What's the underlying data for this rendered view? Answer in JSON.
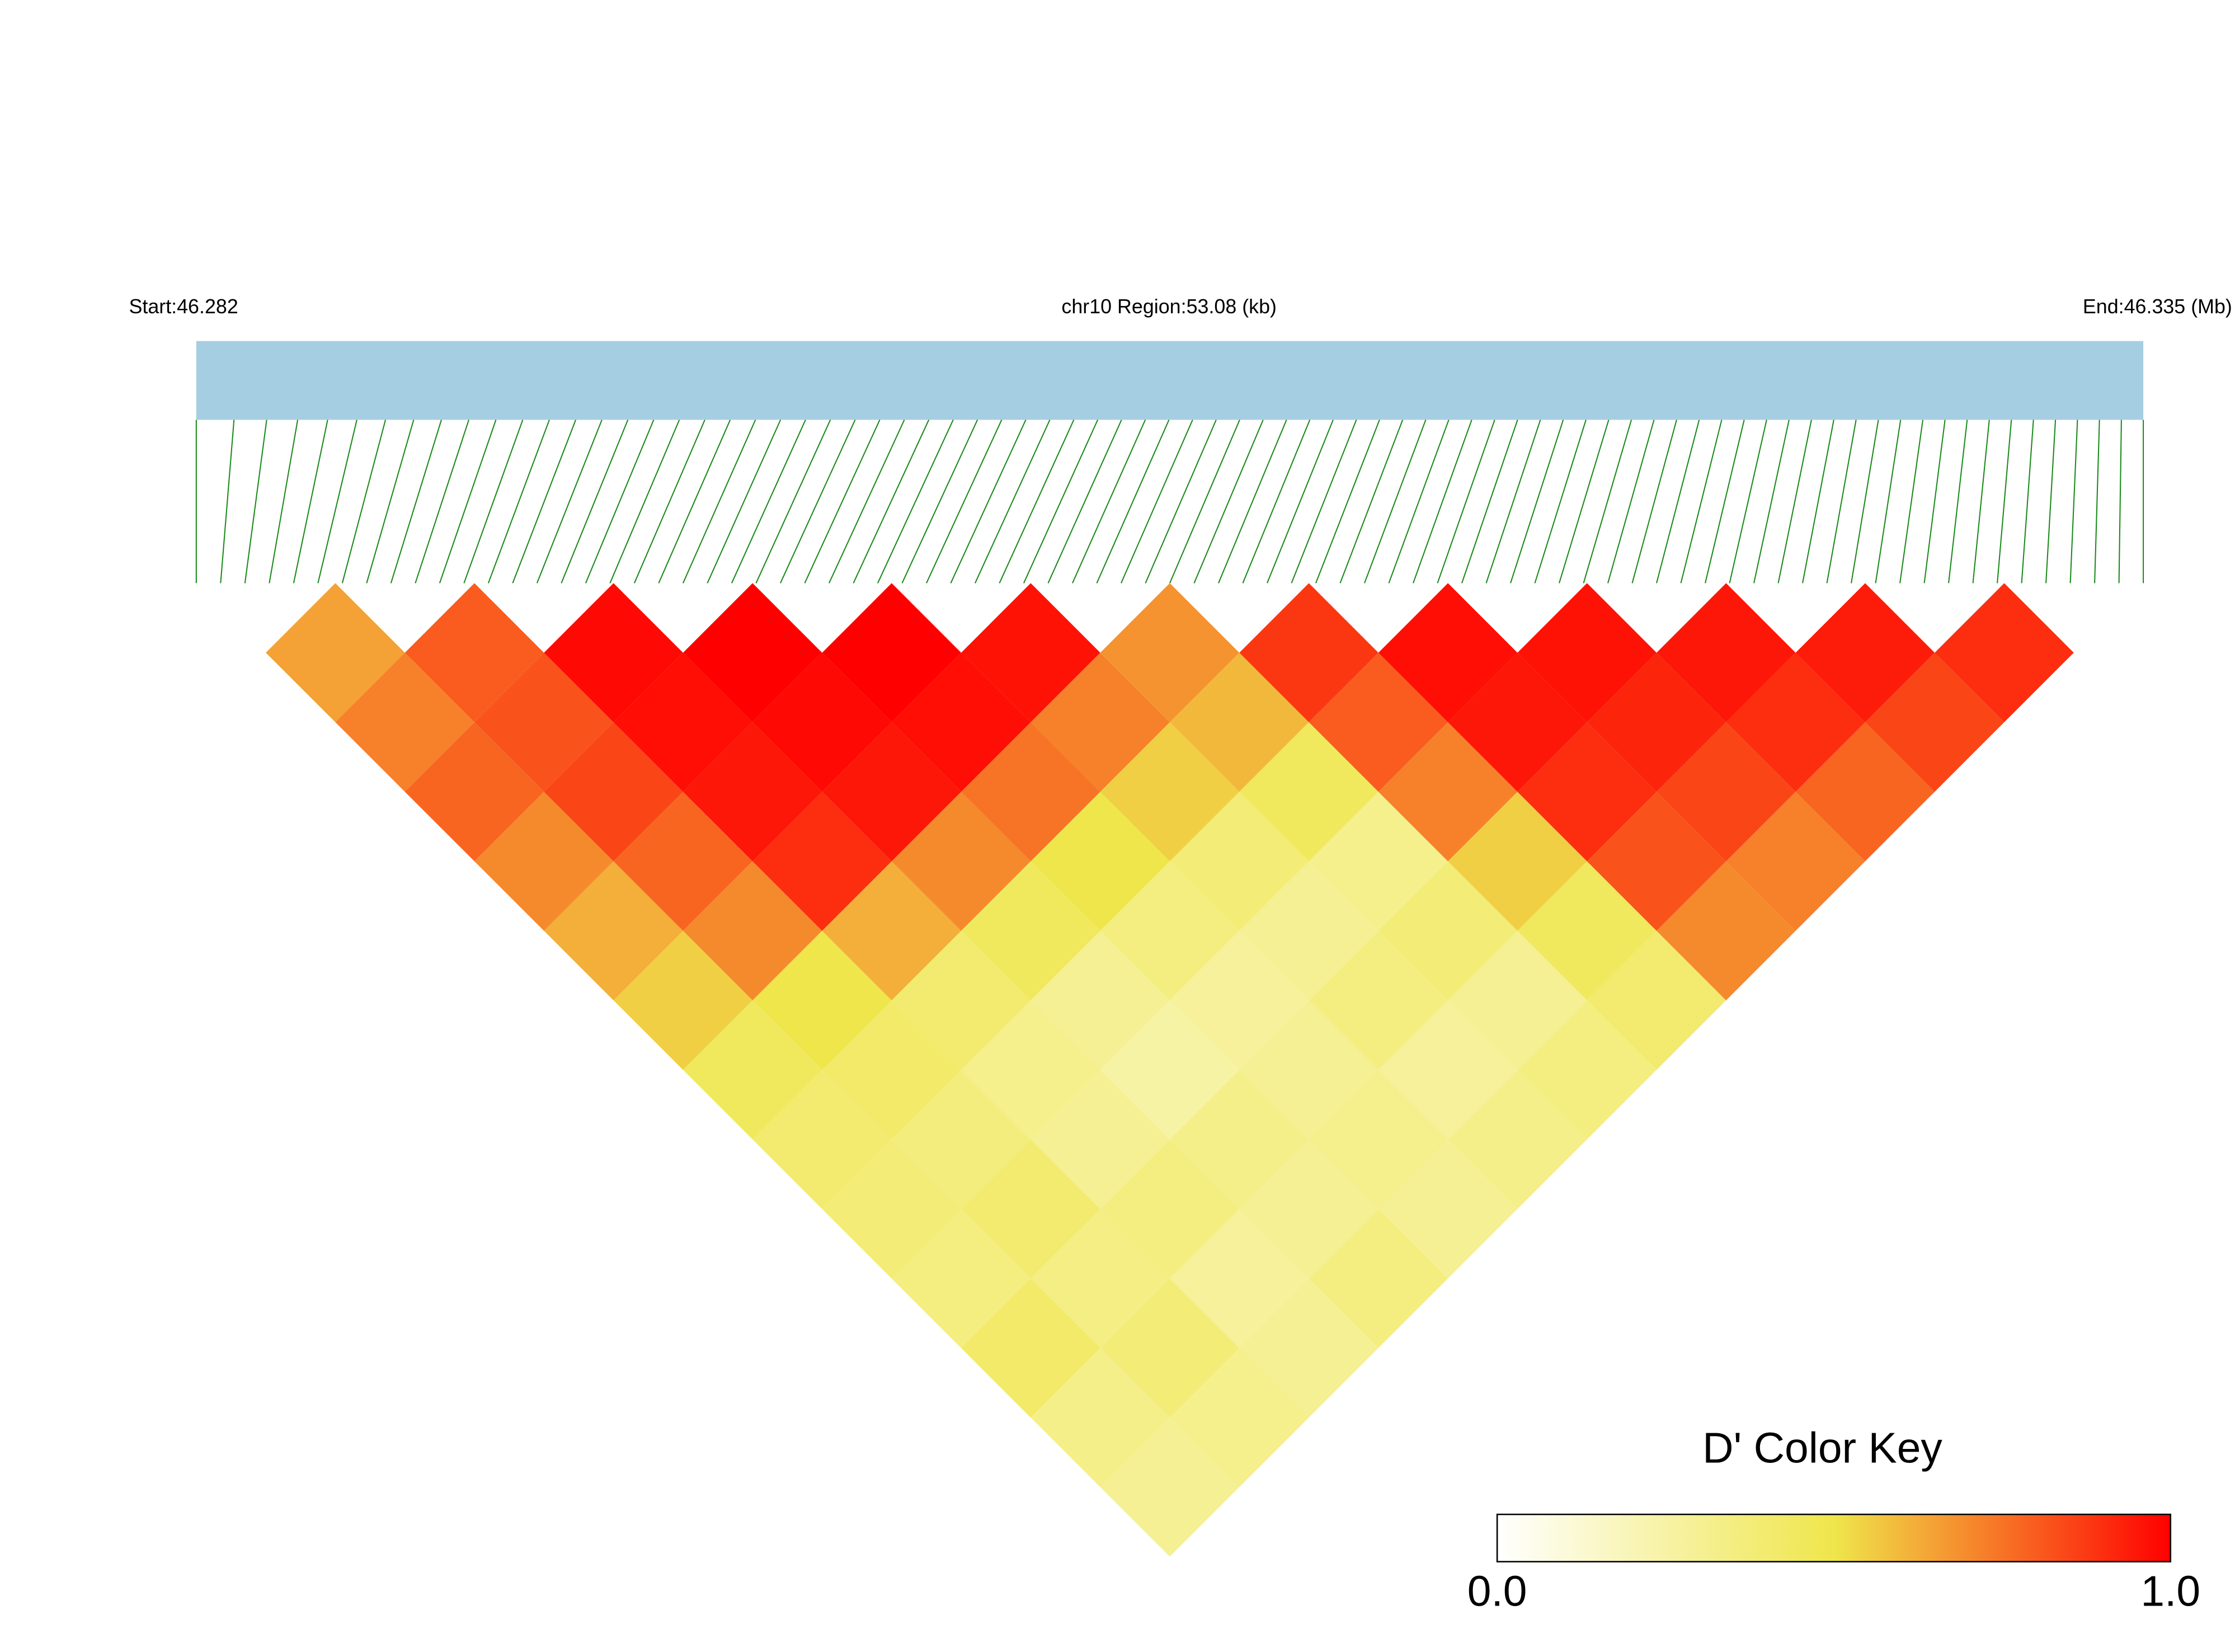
{
  "chart_data": {
    "type": "ld-heatmap",
    "start_label": "Start:46.282",
    "region_label": "chr10 Region:53.08 (kb)",
    "end_label": "End:46.335 (Mb)",
    "matrix": [
      [
        0.65,
        0.72,
        0.78,
        0.7,
        0.62,
        0.55,
        0.45,
        0.4,
        0.38,
        0.35,
        0.42,
        0.33,
        0.3
      ],
      [
        0.8,
        0.82,
        0.85,
        0.78,
        0.7,
        0.5,
        0.42,
        0.36,
        0.4,
        0.34,
        0.38,
        0.32
      ],
      [
        0.98,
        0.97,
        0.95,
        0.9,
        0.62,
        0.4,
        0.32,
        0.3,
        0.35,
        0.28,
        0.3
      ],
      [
        1,
        0.98,
        0.95,
        0.7,
        0.45,
        0.3,
        0.25,
        0.33,
        0.3,
        0.35
      ],
      [
        1,
        0.97,
        0.75,
        0.5,
        0.35,
        0.28,
        0.3,
        0.32,
        0.3
      ],
      [
        0.96,
        0.72,
        0.55,
        0.38,
        0.3,
        0.35,
        0.28,
        0.33
      ],
      [
        0.68,
        0.6,
        0.45,
        0.32,
        0.38,
        0.3,
        0.35
      ],
      [
        0.88,
        0.8,
        0.72,
        0.55,
        0.45,
        0.4
      ],
      [
        0.97,
        0.95,
        0.9,
        0.82,
        0.7
      ],
      [
        0.96,
        0.92,
        0.85,
        0.72
      ],
      [
        0.95,
        0.9,
        0.78
      ],
      [
        0.94,
        0.85
      ],
      [
        0.9
      ]
    ],
    "colorscale": [
      "#ffffff",
      "#efe64b",
      "#ff0000"
    ],
    "colorbar_title": "D' Color Key",
    "clim": [
      0,
      1
    ],
    "cticks": [
      {
        "value": 0,
        "label": "0.0"
      },
      {
        "value": 1,
        "label": "1.0"
      }
    ]
  }
}
